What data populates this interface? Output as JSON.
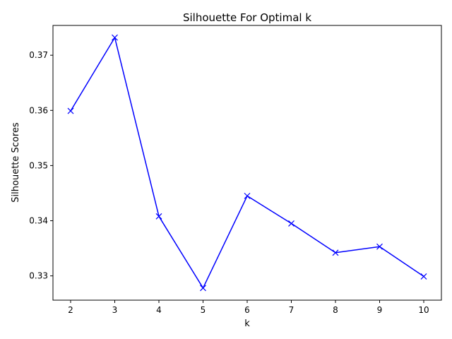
{
  "chart_data": {
    "type": "line",
    "title": "Silhouette For Optimal k",
    "xlabel": "k",
    "ylabel": "Silhouette Scores",
    "x": [
      2,
      3,
      4,
      5,
      6,
      7,
      8,
      9,
      10
    ],
    "series": [
      {
        "values": [
          0.3599,
          0.3732,
          0.3408,
          0.3278,
          0.3445,
          0.3395,
          0.3342,
          0.3353,
          0.3299
        ],
        "color": "#0000ff",
        "marker": "x"
      }
    ],
    "xlim": [
      1.6,
      10.4
    ],
    "ylim": [
      0.3256,
      0.3754
    ],
    "xticks": [
      "2",
      "3",
      "4",
      "5",
      "6",
      "7",
      "8",
      "9",
      "10"
    ],
    "yticks": [
      "0.33",
      "0.34",
      "0.35",
      "0.36",
      "0.37"
    ],
    "grid": false
  }
}
